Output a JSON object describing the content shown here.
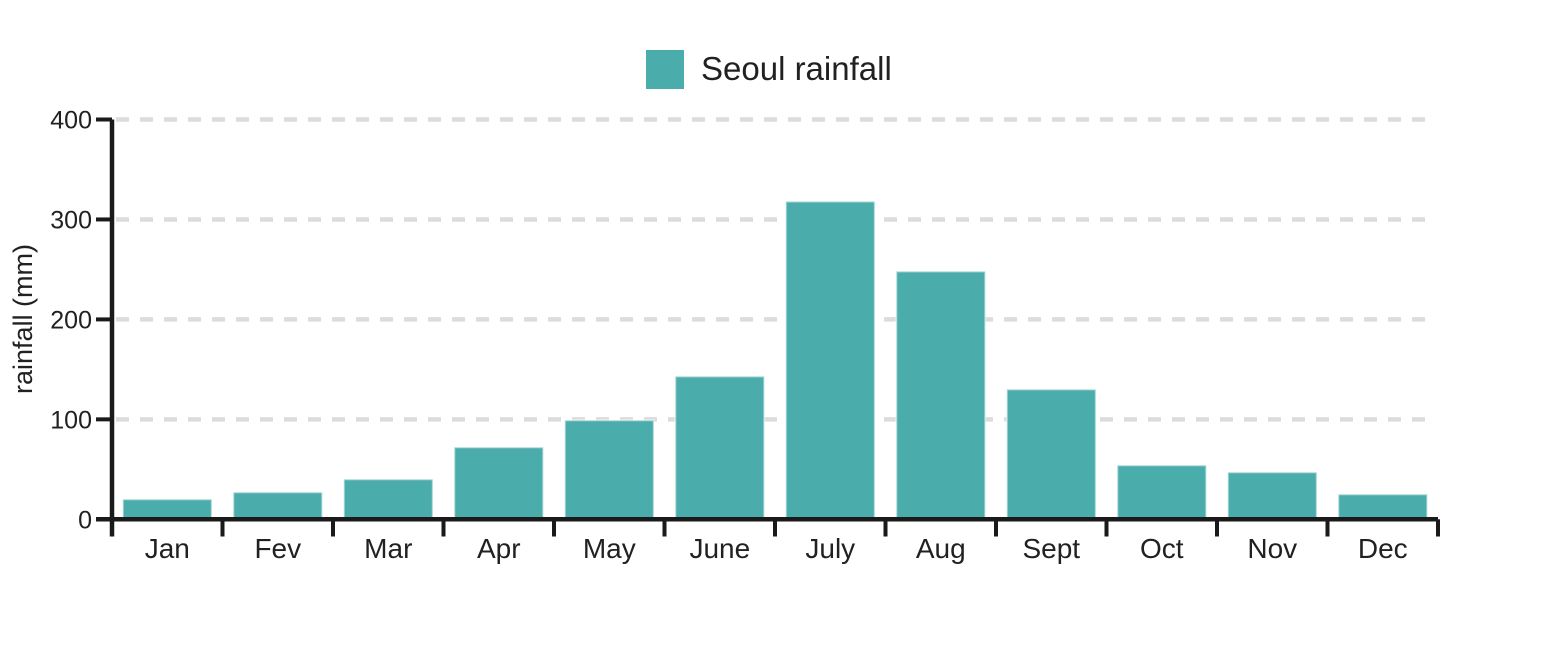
{
  "legend": {
    "label": "Seoul rainfall"
  },
  "chart_data": {
    "type": "bar",
    "title": "Seoul rainfall",
    "categories": [
      "Jan",
      "Fev",
      "Mar",
      "Apr",
      "May",
      "June",
      "July",
      "Aug",
      "Sept",
      "Oct",
      "Nov",
      "Dec"
    ],
    "values": [
      20,
      27,
      40,
      72,
      99,
      143,
      318,
      248,
      130,
      54,
      47,
      25
    ],
    "series": [
      {
        "name": "Seoul rainfall",
        "values": [
          20,
          27,
          40,
          72,
          99,
          143,
          318,
          248,
          130,
          54,
          47,
          25
        ]
      }
    ],
    "xlabel": "",
    "ylabel": "rainfall (mm)",
    "ylim": [
      0,
      400
    ],
    "yticks": [
      0,
      100,
      200,
      300,
      400
    ],
    "grid": "horizontal-dashed",
    "legend_position": "top-center",
    "colors": {
      "bar": "#4BACAC",
      "bar_border": "rgba(255,255,255,0.5)",
      "axis": "#1a1a1a",
      "gridline": "#dcdcdc",
      "text": "#212121"
    }
  }
}
